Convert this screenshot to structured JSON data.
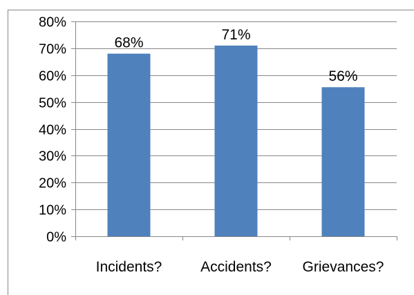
{
  "chart_data": {
    "type": "bar",
    "categories": [
      "Incidents?",
      "Accidents?",
      "Grievances?"
    ],
    "values": [
      68,
      71,
      55.5
    ],
    "data_labels": [
      "68%",
      "71%",
      "56%"
    ],
    "title": "",
    "xlabel": "",
    "ylabel": "",
    "ylim": [
      0,
      80
    ],
    "yticks": [
      0,
      10,
      20,
      30,
      40,
      50,
      60,
      70,
      80
    ],
    "ytick_labels": [
      "0%",
      "10%",
      "20%",
      "30%",
      "40%",
      "50%",
      "60%",
      "70%",
      "80%"
    ],
    "grid": true,
    "legend": "none",
    "bar_color": "#4F81BD",
    "grid_color": "#868686",
    "frame_color": "#868686"
  }
}
